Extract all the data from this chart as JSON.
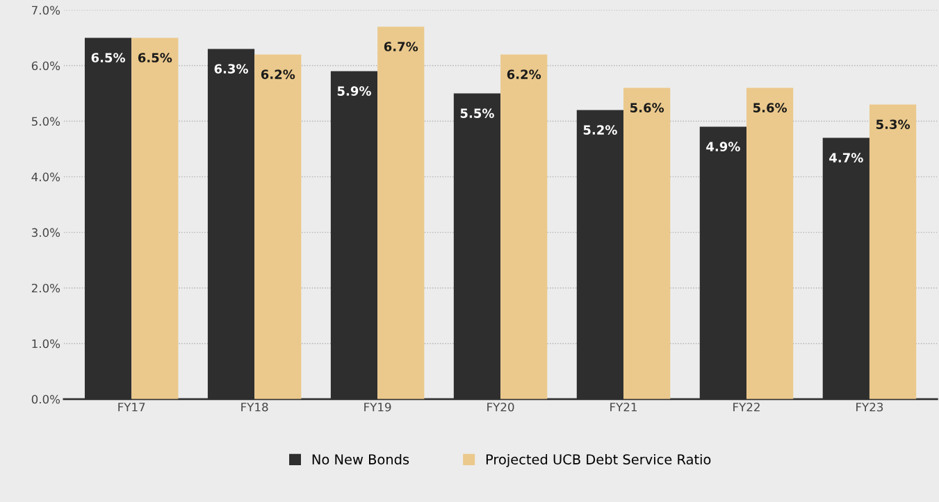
{
  "chart_data": {
    "type": "bar",
    "categories": [
      "FY17",
      "FY18",
      "FY19",
      "FY20",
      "FY21",
      "FY22",
      "FY23"
    ],
    "series": [
      {
        "name": "No New Bonds",
        "color": "#2e2e2e",
        "values": [
          6.5,
          6.3,
          5.9,
          5.5,
          5.2,
          4.9,
          4.7
        ],
        "value_labels": [
          "6.5%",
          "6.3%",
          "5.9%",
          "5.5%",
          "5.2%",
          "4.9%",
          "4.7%"
        ]
      },
      {
        "name": "Projected UCB Debt Service Ratio",
        "color": "#ebc98c",
        "values": [
          6.5,
          6.2,
          6.7,
          6.2,
          5.6,
          5.6,
          5.3
        ],
        "value_labels": [
          "6.5%",
          "6.2%",
          "6.7%",
          "6.2%",
          "5.6%",
          "5.6%",
          "5.3%"
        ]
      }
    ],
    "ylim": [
      0,
      7
    ],
    "yticks": [
      {
        "value": 0,
        "label": "0.0%"
      },
      {
        "value": 1,
        "label": "1.0%"
      },
      {
        "value": 2,
        "label": "2.0%"
      },
      {
        "value": 3,
        "label": "3.0%"
      },
      {
        "value": 4,
        "label": "4.0%"
      },
      {
        "value": 5,
        "label": "5.0%"
      },
      {
        "value": 6,
        "label": "6.0%"
      },
      {
        "value": 7,
        "label": "7.0%"
      }
    ],
    "grid": "y",
    "legend": "bottom"
  }
}
